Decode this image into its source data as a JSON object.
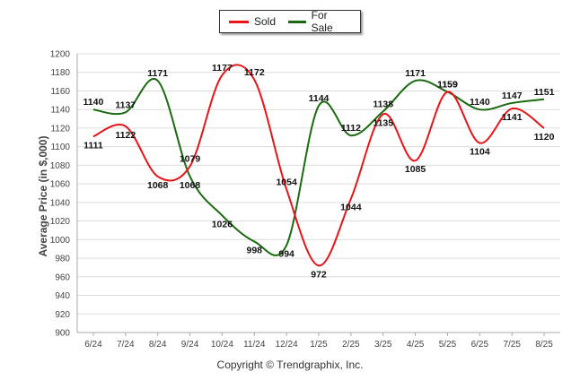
{
  "chart_data": {
    "type": "line",
    "categories": [
      "6/24",
      "7/24",
      "8/24",
      "9/24",
      "10/24",
      "11/24",
      "12/24",
      "1/25",
      "2/25",
      "3/25",
      "4/25",
      "5/25",
      "6/25",
      "7/25",
      "8/25"
    ],
    "series": [
      {
        "name": "Sold",
        "color": "#e8141a",
        "values": [
          1111,
          1122,
          1068,
          1079,
          1177,
          1172,
          1054,
          972,
          1044,
          1135,
          1085,
          1159,
          1104,
          1141,
          1120
        ]
      },
      {
        "name": "For Sale",
        "color": "#1a6b10",
        "values": [
          1140,
          1137,
          1171,
          1068,
          1026,
          998,
          994,
          1144,
          1112,
          1138,
          1171,
          1159,
          1140,
          1147,
          1151
        ]
      }
    ],
    "ylabel": "Average Price (in $,000)",
    "ylim": [
      900,
      1200
    ],
    "yticks": [
      900,
      920,
      940,
      960,
      980,
      1000,
      1020,
      1040,
      1060,
      1080,
      1100,
      1120,
      1140,
      1160,
      1180,
      1200
    ],
    "grid": true,
    "legend": "top-center"
  },
  "footer": "Copyright © Trendgraphix, Inc."
}
